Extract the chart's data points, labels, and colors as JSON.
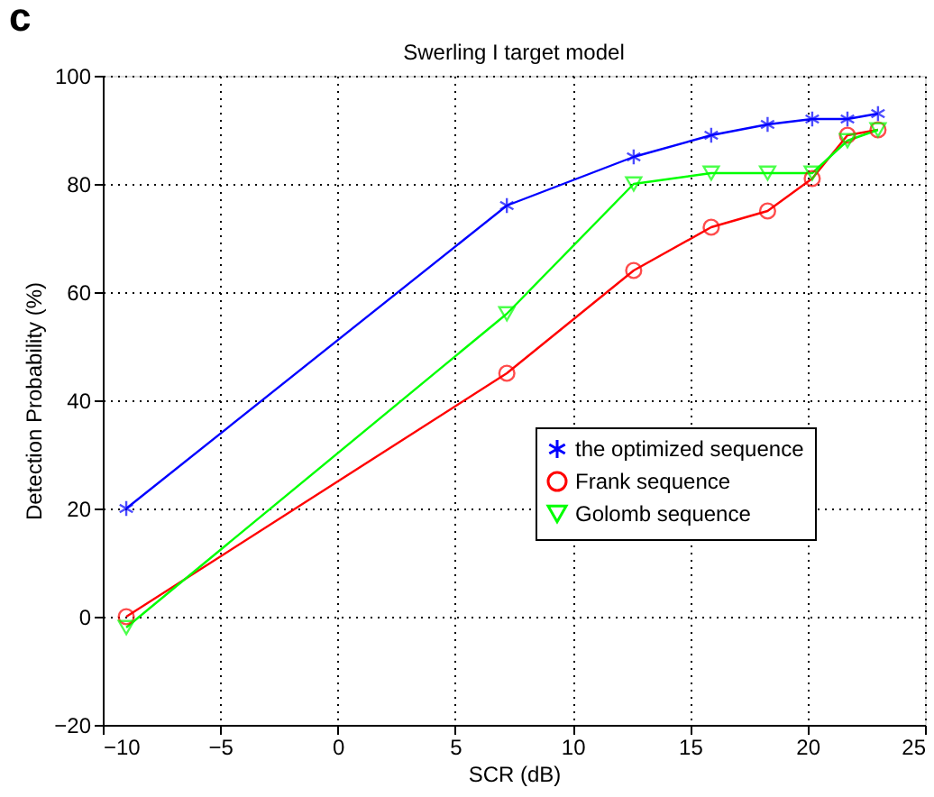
{
  "chart_data": {
    "type": "line",
    "title": "Swerling I target model",
    "xlabel": "SCR (dB)",
    "ylabel": "Detection Probability (%)",
    "annotations": [
      "c"
    ],
    "xlim": [
      -10,
      25
    ],
    "xticks": [
      -10,
      -5,
      0,
      5,
      10,
      15,
      20,
      25
    ],
    "ylim": [
      -20,
      100
    ],
    "yticks": [
      -20,
      0,
      20,
      40,
      60,
      80,
      100
    ],
    "grid": true,
    "legend": "right",
    "line_style": "solid",
    "x": [
      -9,
      7.2,
      12.6,
      15.9,
      18.3,
      20.2,
      21.7,
      23
    ],
    "series": [
      {
        "name": "the optimized sequence",
        "color": "#0000ff",
        "marker": "cross",
        "values": [
          20,
          76,
          85,
          89,
          91,
          92,
          92,
          93
        ]
      },
      {
        "name": "Frank sequence",
        "color": "#ff0000",
        "marker": "circle",
        "values": [
          0,
          45,
          64,
          72,
          75,
          81,
          89,
          90
        ]
      },
      {
        "name": "Golomb sequence",
        "color": "#00ff00",
        "marker": "triangle",
        "values": [
          -2,
          56,
          80,
          82,
          82,
          82,
          88,
          90
        ]
      }
    ]
  }
}
